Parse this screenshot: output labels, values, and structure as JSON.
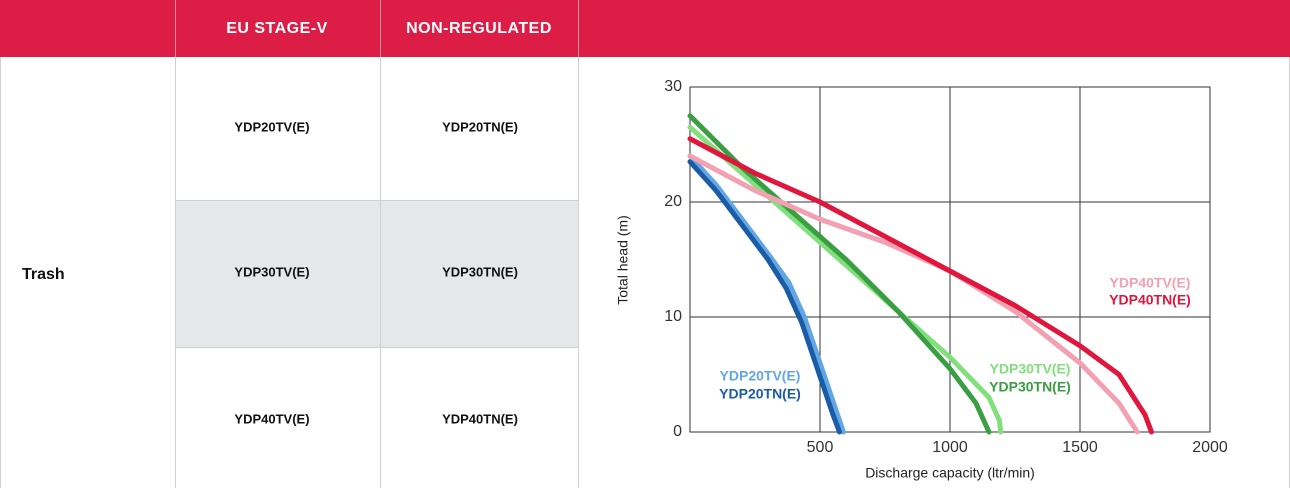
{
  "table": {
    "columns": [
      "EU STAGE-V",
      "NON-REGULATED"
    ],
    "category": "Trash",
    "rows": [
      [
        "YDP20TV(E)",
        "YDP20TN(E)"
      ],
      [
        "YDP30TV(E)",
        "YDP30TN(E)"
      ],
      [
        "YDP40TV(E)",
        "YDP40TN(E)"
      ]
    ]
  },
  "chart_data": {
    "type": "line",
    "xlabel": "Discharge capacity (ltr/min)",
    "ylabel": "Total head (m)",
    "xlim": [
      0,
      2000
    ],
    "xticks": [
      500,
      1000,
      1500,
      2000
    ],
    "ylim": [
      0,
      30
    ],
    "yticks": [
      0,
      10,
      20,
      30
    ],
    "grid": true,
    "series": [
      {
        "name": "YDP20TV(E)",
        "color": "#62a6e4",
        "x": [
          0,
          100,
          200,
          300,
          380,
          440,
          500,
          560,
          590
        ],
        "values": [
          24,
          21.5,
          18.5,
          15.5,
          13,
          10,
          6,
          2,
          0
        ]
      },
      {
        "name": "YDP20TN(E)",
        "color": "#1a5ca6",
        "x": [
          0,
          100,
          200,
          300,
          370,
          430,
          490,
          550,
          575
        ],
        "values": [
          23.5,
          21,
          18,
          15,
          12.5,
          9.5,
          5.5,
          1.5,
          0
        ]
      },
      {
        "name": "YDP30TV(E)",
        "color": "#82e07c",
        "x": [
          0,
          200,
          400,
          600,
          800,
          1000,
          1150,
          1190,
          1195
        ],
        "values": [
          26.5,
          22.5,
          18.5,
          14.5,
          10.5,
          6.5,
          3,
          1,
          0
        ]
      },
      {
        "name": "YDP30TN(E)",
        "color": "#3a9e42",
        "x": [
          0,
          200,
          400,
          600,
          800,
          1000,
          1100,
          1150
        ],
        "values": [
          27.5,
          23,
          19,
          15,
          10.5,
          5.5,
          2.5,
          0
        ]
      },
      {
        "name": "YDP40TV(E)",
        "color": "#f2a0b2",
        "x": [
          0,
          250,
          500,
          750,
          1000,
          1250,
          1500,
          1650,
          1720
        ],
        "values": [
          24,
          21,
          18.5,
          16.5,
          14,
          10.5,
          6,
          2.5,
          0
        ]
      },
      {
        "name": "YDP40TN(E)",
        "color": "#e0163c",
        "x": [
          0,
          250,
          500,
          750,
          1000,
          1250,
          1500,
          1650,
          1750,
          1775
        ],
        "values": [
          25.5,
          22.5,
          20,
          17,
          14,
          11,
          7.5,
          5,
          1.5,
          0
        ]
      }
    ]
  }
}
